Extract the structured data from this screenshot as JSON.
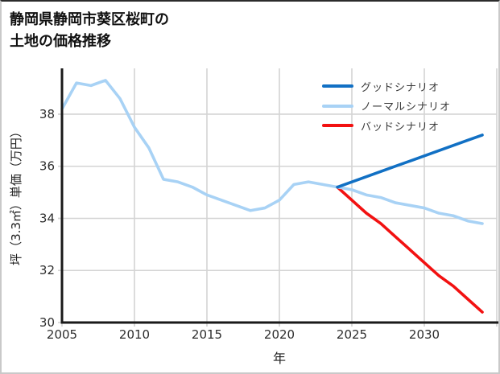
{
  "header": {
    "title_line1": "静岡県静岡市葵区桜町の",
    "title_line2": "土地の価格推移"
  },
  "axes": {
    "xlabel": "年",
    "ylabel": "坪（3.3㎡）単価（万円）"
  },
  "legend": {
    "items": [
      {
        "label": "グッドシナリオ",
        "color": "#1170c4"
      },
      {
        "label": "ノーマルシナリオ",
        "color": "#a8d2f5"
      },
      {
        "label": "バッドシナリオ",
        "color": "#f21111"
      }
    ]
  },
  "chart_data": {
    "type": "line",
    "title": "静岡県静岡市葵区桜町の土地の価格推移",
    "xlabel": "年",
    "ylabel": "坪（3.3㎡）単価（万円）",
    "xlim": [
      2005,
      2035
    ],
    "ylim": [
      30,
      39.76
    ],
    "x_ticks": [
      2005,
      2010,
      2015,
      2020,
      2025,
      2030
    ],
    "x_gridlines": [
      2010,
      2015,
      2020,
      2025,
      2030,
      2035
    ],
    "y_ticks": [
      30,
      32,
      34,
      36,
      38
    ],
    "y_gridlines": [
      32,
      34,
      36,
      38
    ],
    "grid": true,
    "grid_color": "#d4d4d4",
    "axis_color": "#1a1a1a",
    "legend_position": "upper right",
    "series": [
      {
        "name": "バッドシナリオ",
        "color": "#f21111",
        "x": [
          2024,
          2025,
          2026,
          2027,
          2028,
          2029,
          2030,
          2031,
          2032,
          2033,
          2034
        ],
        "values": [
          35.2,
          34.7,
          34.2,
          33.8,
          33.3,
          32.8,
          32.3,
          31.8,
          31.4,
          30.9,
          30.4
        ]
      },
      {
        "name": "ノーマルシナリオ",
        "color": "#a8d2f5",
        "x": [
          2005,
          2006,
          2007,
          2008,
          2009,
          2010,
          2011,
          2012,
          2013,
          2014,
          2015,
          2016,
          2017,
          2018,
          2019,
          2020,
          2021,
          2022,
          2023,
          2024,
          2025,
          2026,
          2027,
          2028,
          2029,
          2030,
          2031,
          2032,
          2033,
          2034
        ],
        "values": [
          38.2,
          39.2,
          39.1,
          39.3,
          38.6,
          37.5,
          36.7,
          35.5,
          35.4,
          35.2,
          34.9,
          34.7,
          34.5,
          34.3,
          34.4,
          34.7,
          35.3,
          35.4,
          35.3,
          35.2,
          35.1,
          34.9,
          34.8,
          34.6,
          34.5,
          34.4,
          34.2,
          34.1,
          33.9,
          33.8
        ]
      },
      {
        "name": "グッドシナリオ",
        "color": "#1170c4",
        "x": [
          2024,
          2025,
          2026,
          2027,
          2028,
          2029,
          2030,
          2031,
          2032,
          2033,
          2034
        ],
        "values": [
          35.2,
          35.4,
          35.6,
          35.8,
          36.0,
          36.2,
          36.4,
          36.6,
          36.8,
          37.0,
          37.2
        ]
      }
    ]
  }
}
